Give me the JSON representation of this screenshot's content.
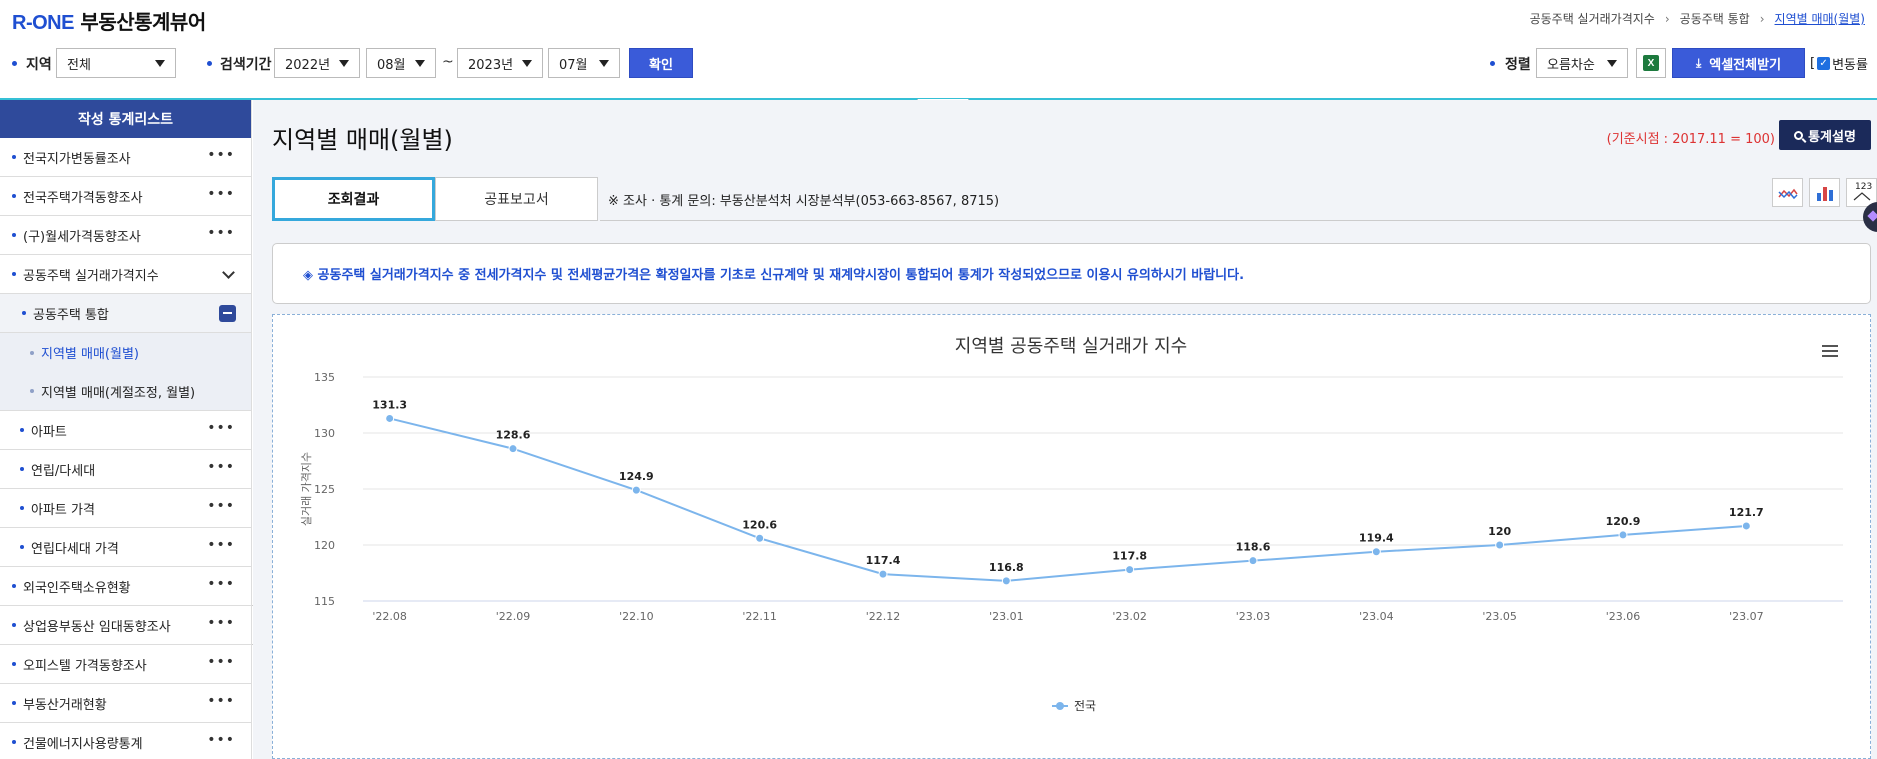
{
  "header": {
    "logo_brand": "R-ONE",
    "logo_rest": "부동산통계뷰어",
    "breadcrumb": [
      "공동주택 실거래가격지수",
      "공동주택 통합",
      "지역별 매매(월별)"
    ]
  },
  "filters": {
    "region_label": "지역",
    "region_value": "전체",
    "period_label": "검색기간",
    "start_year": "2022년",
    "start_month": "08월",
    "tilde": "~",
    "end_year": "2023년",
    "end_month": "07월",
    "confirm": "확인",
    "sort_label": "정렬",
    "sort_value": "오름차순",
    "excel_icon_text": "X",
    "excel_download": "엑셀전체받기",
    "change_rate": "변동률",
    "bracket_open": "["
  },
  "sidebar": {
    "title": "작성 통계리스트",
    "items": [
      {
        "label": "전국지가변동률조사"
      },
      {
        "label": "전국주택가격동향조사"
      },
      {
        "label": "(구)월세가격동향조사"
      },
      {
        "label": "공동주택 실거래가격지수"
      },
      {
        "label": "공동주택 통합"
      },
      {
        "label": "지역별 매매(월별)"
      },
      {
        "label": "지역별 매매(계절조정, 월별)"
      },
      {
        "label": "아파트"
      },
      {
        "label": "연립/다세대"
      },
      {
        "label": "아파트 가격"
      },
      {
        "label": "연립다세대 가격"
      },
      {
        "label": "외국인주택소유현황"
      },
      {
        "label": "상업용부동산 임대동향조사"
      },
      {
        "label": "오피스텔 가격동향조사"
      },
      {
        "label": "부동산거래현황"
      },
      {
        "label": "건물에너지사용량통계"
      }
    ]
  },
  "main": {
    "title": "지역별 매매(월별)",
    "base_note": "(기준시점 : 2017.11 = 100)",
    "stat_button": "통계설명",
    "tabs": [
      "조회결과",
      "공표보고서"
    ],
    "inquiry": "※ 조사 · 통계 문의: 부동산분석처 시장분석부(053-663-8567, 8715)",
    "notice": "◈ 공동주택 실거래가격지수 중 전세가격지수 및 전세평균가격은 확정일자를 기초로 신규계약 및 재계약시장이 통합되어 통계가 작성되었으므로 이용시 유의하시기 바랍니다.",
    "tool_table_text": "123"
  },
  "colors": {
    "accent": "#3a5bd9",
    "sidebar_head": "#2f4a9b",
    "line": "#7cb5ec",
    "note_red": "#dd3333"
  },
  "chart_data": {
    "type": "line",
    "title": "지역별 공동주택 실거래가 지수",
    "ylabel": "실거래 가격지수",
    "xlabel": "",
    "ylim": [
      115,
      135
    ],
    "yticks": [
      115,
      120,
      125,
      130,
      135
    ],
    "categories": [
      "'22.08",
      "'22.09",
      "'22.10",
      "'22.11",
      "'22.12",
      "'23.01",
      "'23.02",
      "'23.03",
      "'23.04",
      "'23.05",
      "'23.06",
      "'23.07"
    ],
    "series": [
      {
        "name": "전국",
        "values": [
          131.3,
          128.6,
          124.9,
          120.6,
          117.4,
          116.8,
          117.8,
          118.6,
          119.4,
          120,
          120.9,
          121.7
        ]
      }
    ],
    "legend": "bottom-center",
    "grid": true
  }
}
